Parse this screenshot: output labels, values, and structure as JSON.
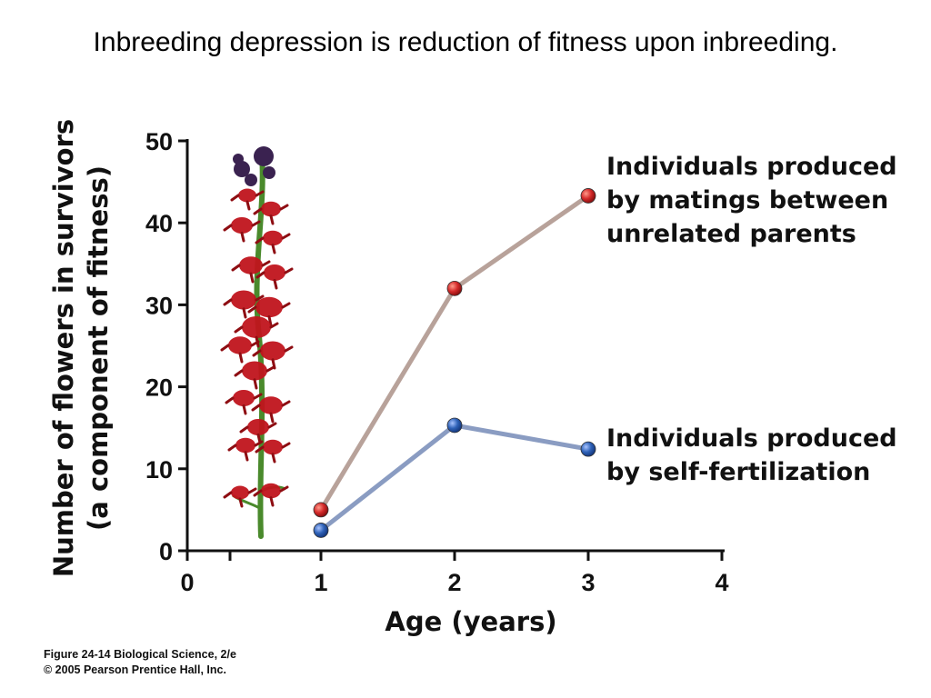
{
  "slide": {
    "title": "Inbreeding depression is reduction of fitness upon inbreeding."
  },
  "caption": {
    "line1": "Figure 24-14  Biological Science, 2/e",
    "line2": "© 2005 Pearson Prentice Hall, Inc."
  },
  "illustration": {
    "icon": "cardinal-flower-icon",
    "colors": {
      "stem": "#4a8a2c",
      "flower": "#c0141c",
      "bud": "#3a2250"
    }
  },
  "chart_data": {
    "type": "line",
    "xlabel": "Age (years)",
    "ylabel_line1": "Number of flowers in survivors",
    "ylabel_line2": "(a component of fitness)",
    "xlim": [
      0,
      4
    ],
    "ylim": [
      0,
      50
    ],
    "x_ticks": [
      "0",
      "1",
      "2",
      "3",
      "4"
    ],
    "y_ticks": [
      "0",
      "10",
      "20",
      "30",
      "40",
      "50"
    ],
    "x_tick_values": [
      0,
      1,
      2,
      3,
      4
    ],
    "y_tick_values": [
      0,
      10,
      20,
      30,
      40,
      50
    ],
    "series": [
      {
        "x": [
          1,
          2,
          3
        ],
        "values": [
          5,
          32,
          43.3
        ],
        "line_color": "#b8a29a",
        "marker_color": "#d42a2a",
        "label_lines": [
          "Individuals produced",
          "by matings between",
          "unrelated parents"
        ]
      },
      {
        "x": [
          1,
          2,
          3
        ],
        "values": [
          2.5,
          15.3,
          12.4
        ],
        "line_color": "#8a9cc2",
        "marker_color": "#2f62b8",
        "label_lines": [
          "Individuals produced",
          "by self-fertilization"
        ]
      }
    ],
    "grid": false,
    "legend": "none"
  }
}
